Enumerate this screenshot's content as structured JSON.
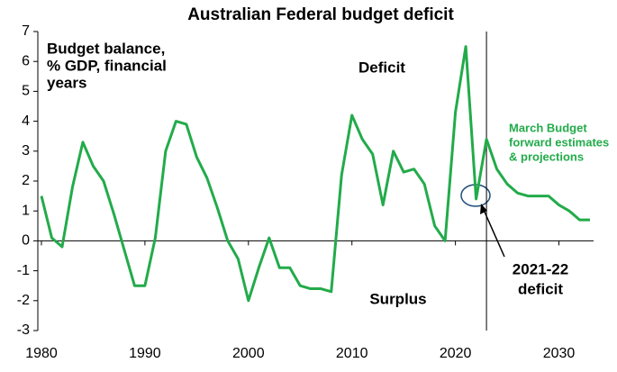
{
  "chart_data": {
    "type": "line",
    "title": "Australian Federal budget deficit",
    "y_label_lines": [
      "Budget balance,",
      "% GDP, financial",
      "years"
    ],
    "annotations": {
      "deficit": "Deficit",
      "surplus": "Surplus",
      "projection_lines": [
        "March Budget",
        "forward estimates",
        "& projections"
      ],
      "callout_lines": [
        "2021-22",
        "deficit"
      ]
    },
    "x": [
      1980,
      1981,
      1982,
      1983,
      1984,
      1985,
      1986,
      1987,
      1988,
      1989,
      1990,
      1991,
      1992,
      1993,
      1994,
      1995,
      1996,
      1997,
      1998,
      1999,
      2000,
      2001,
      2002,
      2003,
      2004,
      2005,
      2006,
      2007,
      2008,
      2009,
      2010,
      2011,
      2012,
      2013,
      2014,
      2015,
      2016,
      2017,
      2018,
      2019,
      2020,
      2021,
      2022,
      2023,
      2024,
      2025,
      2026,
      2027,
      2028,
      2029,
      2030,
      2031,
      2032,
      2033
    ],
    "series": [
      {
        "name": "Budget balance",
        "color": "#22ab4a",
        "values": [
          1.5,
          0.1,
          -0.2,
          1.8,
          3.3,
          2.5,
          2.0,
          0.9,
          -0.3,
          -1.5,
          -1.5,
          0.1,
          3.0,
          4.0,
          3.9,
          2.8,
          2.1,
          1.1,
          0.0,
          -0.6,
          -2.0,
          -0.9,
          0.1,
          -0.9,
          -0.9,
          -1.5,
          -1.6,
          -1.6,
          -1.7,
          2.2,
          4.2,
          3.4,
          2.9,
          1.2,
          3.0,
          2.3,
          2.4,
          1.9,
          0.5,
          0.0,
          4.3,
          6.5,
          1.4,
          3.4,
          2.4,
          1.9,
          1.6,
          1.5,
          1.5,
          1.5,
          1.2,
          1.0,
          0.7,
          0.7
        ]
      }
    ],
    "projection_start": 2023,
    "xlim": [
      1980,
      2033
    ],
    "xticks": [
      1980,
      1990,
      2000,
      2010,
      2020,
      2030
    ],
    "ylim": [
      -3,
      7
    ],
    "yticks": [
      -3,
      -2,
      -1,
      0,
      1,
      2,
      3,
      4,
      5,
      6,
      7
    ]
  }
}
